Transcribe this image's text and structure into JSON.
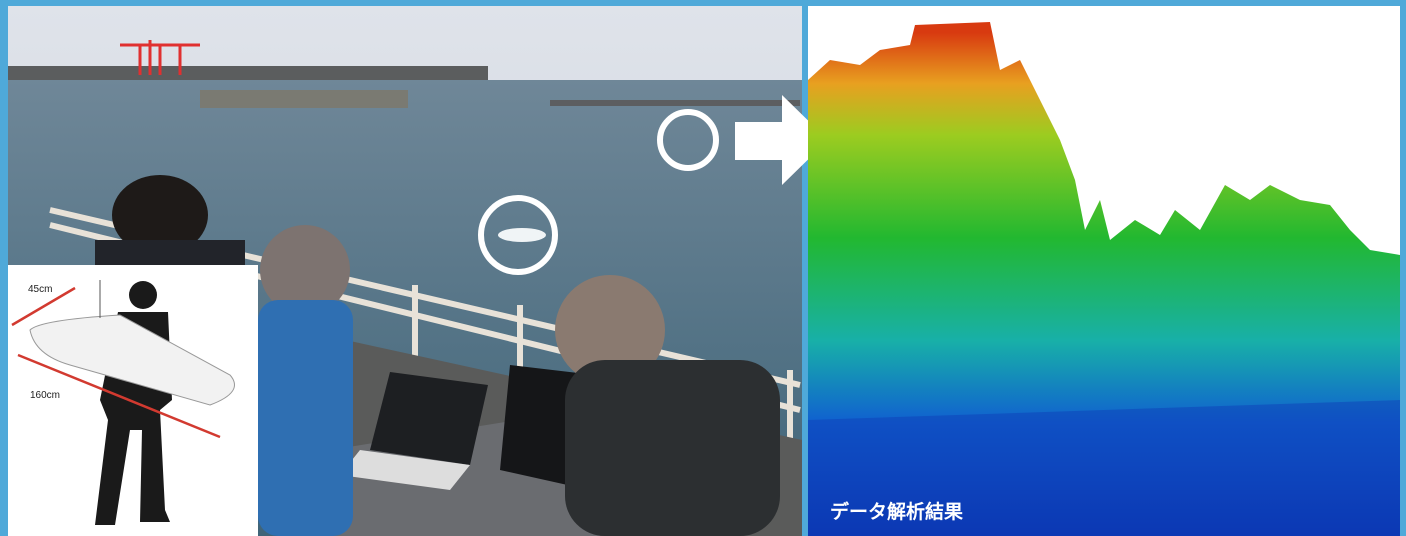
{
  "inset": {
    "width_label": "45cm",
    "length_label": "160cm"
  },
  "result_caption": "データ解析結果"
}
